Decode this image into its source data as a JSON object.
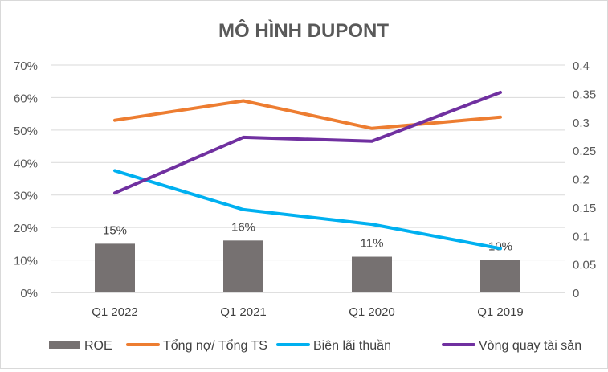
{
  "chart_data": {
    "type": "bar+line",
    "title": "MÔ HÌNH DUPONT",
    "categories": [
      "Q1 2022",
      "Q1 2021",
      "Q1 2020",
      "Q1 2019"
    ],
    "left_axis": {
      "min": 0,
      "max": 0.7,
      "step": 0.1,
      "tick_labels": [
        "0%",
        "10%",
        "20%",
        "30%",
        "40%",
        "50%",
        "60%",
        "70%"
      ]
    },
    "right_axis": {
      "min": 0,
      "max": 0.4,
      "step": 0.05,
      "tick_labels": [
        "0",
        "0.05",
        "0.1",
        "0.15",
        "0.2",
        "0.25",
        "0.3",
        "0.35",
        "0.4"
      ]
    },
    "grid": "horizontal",
    "legend_position": "bottom",
    "series": [
      {
        "name": "ROE",
        "type": "bar",
        "axis": "left",
        "color": "#767171",
        "values": [
          0.15,
          0.16,
          0.11,
          0.1
        ],
        "labels": [
          "15%",
          "16%",
          "11%",
          "10%"
        ]
      },
      {
        "name": "Tổng nợ/ Tổng TS",
        "type": "line",
        "axis": "left",
        "color": "#ED7D31",
        "values": [
          0.53,
          0.59,
          0.505,
          0.54
        ]
      },
      {
        "name": "Biên lãi thuần",
        "type": "line",
        "axis": "left",
        "color": "#00B0F0",
        "values": [
          0.375,
          0.255,
          0.21,
          0.135
        ]
      },
      {
        "name": "Vòng quay tài sản",
        "type": "line",
        "axis": "right",
        "color": "#7030A0",
        "values": [
          0.175,
          0.273,
          0.266,
          0.352
        ]
      }
    ]
  }
}
